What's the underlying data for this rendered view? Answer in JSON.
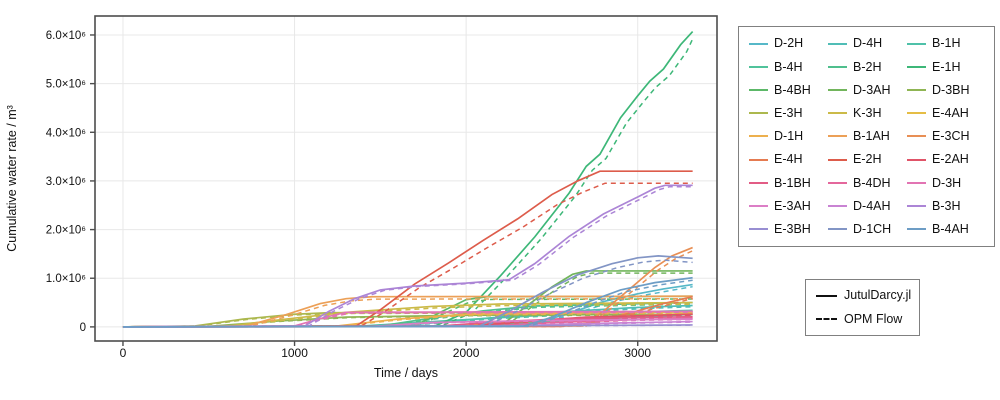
{
  "chart_data": {
    "type": "line",
    "title": "",
    "xlabel": "Time / days",
    "ylabel": "Cumulative water rate / m³",
    "xlim_days": [
      -163,
      3462
    ],
    "ylim_e6": [
      -0.29,
      6.39
    ],
    "grid": true,
    "x_ticks": [
      {
        "v": 0,
        "label": "0"
      },
      {
        "v": 1000,
        "label": "1000"
      },
      {
        "v": 2000,
        "label": "2000"
      },
      {
        "v": 3000,
        "label": "3000"
      }
    ],
    "y_ticks": [
      {
        "v": 0,
        "label": "0"
      },
      {
        "v": 1,
        "label": "1.0×10⁶"
      },
      {
        "v": 2,
        "label": "2.0×10⁶"
      },
      {
        "v": 3,
        "label": "3.0×10⁶"
      },
      {
        "v": 4,
        "label": "4.0×10⁶"
      },
      {
        "v": 5,
        "label": "5.0×10⁶"
      },
      {
        "v": 6,
        "label": "6.0×10⁶"
      }
    ],
    "legend_position": "outside-right",
    "line_styles": {
      "solid": "JutulDarcy.jl",
      "dashed": "OPM Flow"
    },
    "note": "27 well series; values stored in units of 10^6 m³; dashed OPM Flow curve = solid points with value×opm_scale and time+opm_lag",
    "series": [
      {
        "name": "D-2H",
        "color": "#56b8c8",
        "opm_scale": 0.95,
        "opm_lag": 30,
        "points": [
          [
            0,
            0
          ],
          [
            2350,
            0.02
          ],
          [
            2600,
            0.28
          ],
          [
            2800,
            0.52
          ],
          [
            3000,
            0.68
          ],
          [
            3150,
            0.78
          ],
          [
            3320,
            0.87
          ]
        ]
      },
      {
        "name": "D-4H",
        "color": "#50bdb6",
        "opm_scale": 0.94,
        "opm_lag": 30,
        "points": [
          [
            0,
            0
          ],
          [
            1600,
            0.02
          ],
          [
            2000,
            0.14
          ],
          [
            2500,
            0.3
          ],
          [
            3000,
            0.4
          ],
          [
            3320,
            0.44
          ]
        ]
      },
      {
        "name": "B-1H",
        "color": "#4fc1a9",
        "opm_scale": 0.94,
        "opm_lag": 30,
        "points": [
          [
            0,
            0
          ],
          [
            1400,
            0.02
          ],
          [
            1900,
            0.13
          ],
          [
            2600,
            0.27
          ],
          [
            3320,
            0.34
          ]
        ]
      },
      {
        "name": "B-4H",
        "color": "#50c39b",
        "opm_scale": 0.93,
        "opm_lag": 30,
        "points": [
          [
            0,
            0
          ],
          [
            2000,
            0.01
          ],
          [
            2400,
            0.1
          ],
          [
            3000,
            0.2
          ],
          [
            3320,
            0.26
          ]
        ]
      },
      {
        "name": "B-2H",
        "color": "#4fbf8d",
        "opm_scale": 0.94,
        "opm_lag": 30,
        "points": [
          [
            0,
            0
          ],
          [
            1500,
            0.02
          ],
          [
            1800,
            0.18
          ],
          [
            2100,
            0.33
          ],
          [
            2400,
            0.43
          ],
          [
            3320,
            0.5
          ]
        ]
      },
      {
        "name": "E-1H",
        "color": "#3db778",
        "opm_scale": 0.975,
        "opm_lag": 35,
        "points": [
          [
            0,
            0
          ],
          [
            1820,
            0.02
          ],
          [
            2000,
            0.3
          ],
          [
            2200,
            1.05
          ],
          [
            2400,
            1.85
          ],
          [
            2600,
            2.75
          ],
          [
            2700,
            3.3
          ],
          [
            2780,
            3.55
          ],
          [
            2900,
            4.3
          ],
          [
            3000,
            4.75
          ],
          [
            3070,
            5.05
          ],
          [
            3150,
            5.3
          ],
          [
            3250,
            5.8
          ],
          [
            3320,
            6.07
          ]
        ]
      },
      {
        "name": "B-4BH",
        "color": "#5cb868",
        "opm_scale": 0.91,
        "opm_lag": 20,
        "points": [
          [
            0,
            0
          ],
          [
            1700,
            0.02
          ],
          [
            1850,
            0.3
          ],
          [
            2000,
            0.56
          ],
          [
            2120,
            0.62
          ],
          [
            3320,
            0.63
          ]
        ]
      },
      {
        "name": "D-3AH",
        "color": "#72b55c",
        "opm_scale": 0.96,
        "opm_lag": 30,
        "points": [
          [
            0,
            0
          ],
          [
            2200,
            0.02
          ],
          [
            2350,
            0.42
          ],
          [
            2500,
            0.82
          ],
          [
            2620,
            1.08
          ],
          [
            2700,
            1.15
          ],
          [
            3320,
            1.15
          ]
        ]
      },
      {
        "name": "D-3BH",
        "color": "#8fb554",
        "opm_scale": 0.95,
        "opm_lag": 20,
        "points": [
          [
            0,
            0
          ],
          [
            500,
            0.01
          ],
          [
            900,
            0.12
          ],
          [
            1300,
            0.2
          ],
          [
            2000,
            0.24
          ],
          [
            3320,
            0.26
          ]
        ]
      },
      {
        "name": "E-3H",
        "color": "#acb84e",
        "opm_scale": 0.95,
        "opm_lag": 20,
        "points": [
          [
            0,
            0
          ],
          [
            420,
            0.02
          ],
          [
            700,
            0.16
          ],
          [
            1000,
            0.26
          ],
          [
            1200,
            0.29
          ],
          [
            3320,
            0.31
          ]
        ]
      },
      {
        "name": "K-3H",
        "color": "#cbba48",
        "opm_scale": 0.93,
        "opm_lag": 25,
        "points": [
          [
            0,
            0
          ],
          [
            600,
            0.01
          ],
          [
            900,
            0.14
          ],
          [
            1300,
            0.3
          ],
          [
            1800,
            0.42
          ],
          [
            2200,
            0.47
          ],
          [
            3320,
            0.5
          ]
        ]
      },
      {
        "name": "E-4AH",
        "color": "#e5bd45",
        "opm_scale": 0.93,
        "opm_lag": 25,
        "points": [
          [
            0,
            0
          ],
          [
            1900,
            0.01
          ],
          [
            2300,
            0.1
          ],
          [
            2800,
            0.2
          ],
          [
            3320,
            0.28
          ]
        ]
      },
      {
        "name": "D-1H",
        "color": "#edb04e",
        "opm_scale": 0.94,
        "opm_lag": 25,
        "points": [
          [
            0,
            0
          ],
          [
            1250,
            0.02
          ],
          [
            1600,
            0.16
          ],
          [
            2000,
            0.26
          ],
          [
            3320,
            0.31
          ]
        ]
      },
      {
        "name": "B-1AH",
        "color": "#eca057",
        "opm_scale": 0.92,
        "opm_lag": 25,
        "points": [
          [
            0,
            0
          ],
          [
            720,
            0.02
          ],
          [
            950,
            0.25
          ],
          [
            1150,
            0.48
          ],
          [
            1300,
            0.58
          ],
          [
            1450,
            0.62
          ],
          [
            3320,
            0.63
          ]
        ]
      },
      {
        "name": "E-3CH",
        "color": "#e88f55",
        "opm_scale": 0.96,
        "opm_lag": 20,
        "points": [
          [
            0,
            0
          ],
          [
            2680,
            0.02
          ],
          [
            2800,
            0.32
          ],
          [
            2900,
            0.62
          ],
          [
            3000,
            0.92
          ],
          [
            3100,
            1.22
          ],
          [
            3200,
            1.46
          ],
          [
            3320,
            1.63
          ]
        ]
      },
      {
        "name": "E-4H",
        "color": "#e57b51",
        "opm_scale": 0.94,
        "opm_lag": 25,
        "points": [
          [
            0,
            0
          ],
          [
            2550,
            0.01
          ],
          [
            2750,
            0.1
          ],
          [
            2950,
            0.28
          ],
          [
            3150,
            0.48
          ],
          [
            3320,
            0.62
          ]
        ]
      },
      {
        "name": "E-2H",
        "color": "#dd5c4b",
        "opm_scale": 0.923,
        "opm_lag": 30,
        "points": [
          [
            0,
            0
          ],
          [
            1360,
            0.02
          ],
          [
            1500,
            0.35
          ],
          [
            1700,
            0.88
          ],
          [
            1900,
            1.32
          ],
          [
            2100,
            1.78
          ],
          [
            2300,
            2.22
          ],
          [
            2500,
            2.72
          ],
          [
            2650,
            3.0
          ],
          [
            2780,
            3.2
          ],
          [
            3320,
            3.2
          ]
        ]
      },
      {
        "name": "E-2AH",
        "color": "#e05468",
        "opm_scale": 0.93,
        "opm_lag": 25,
        "points": [
          [
            0,
            0
          ],
          [
            2000,
            0.01
          ],
          [
            2300,
            0.1
          ],
          [
            2700,
            0.2
          ],
          [
            3320,
            0.26
          ]
        ]
      },
      {
        "name": "B-1BH",
        "color": "#e25c85",
        "opm_scale": 0.93,
        "opm_lag": 25,
        "points": [
          [
            0,
            0
          ],
          [
            1850,
            0.02
          ],
          [
            2200,
            0.11
          ],
          [
            2600,
            0.17
          ],
          [
            3320,
            0.21
          ]
        ]
      },
      {
        "name": "B-4DH",
        "color": "#e4679c",
        "opm_scale": 0.92,
        "opm_lag": 25,
        "points": [
          [
            0,
            0
          ],
          [
            2100,
            0.01
          ],
          [
            2500,
            0.09
          ],
          [
            3000,
            0.15
          ],
          [
            3320,
            0.18
          ]
        ]
      },
      {
        "name": "D-3H",
        "color": "#e274b3",
        "opm_scale": 0.94,
        "opm_lag": 20,
        "points": [
          [
            0,
            0
          ],
          [
            1000,
            0.02
          ],
          [
            1180,
            0.2
          ],
          [
            1300,
            0.3
          ],
          [
            3320,
            0.32
          ]
        ]
      },
      {
        "name": "E-3AH",
        "color": "#dc7ec6",
        "opm_scale": 0.93,
        "opm_lag": 25,
        "points": [
          [
            0,
            0
          ],
          [
            1450,
            0.01
          ],
          [
            1800,
            0.09
          ],
          [
            2400,
            0.13
          ],
          [
            3320,
            0.16
          ]
        ]
      },
      {
        "name": "D-4AH",
        "color": "#c983d3",
        "opm_scale": 0.9,
        "opm_lag": 25,
        "points": [
          [
            0,
            0
          ],
          [
            2200,
            0.01
          ],
          [
            2600,
            0.06
          ],
          [
            3320,
            0.11
          ]
        ]
      },
      {
        "name": "B-3H",
        "color": "#ac85d6",
        "opm_scale": 0.99,
        "opm_lag": 25,
        "points": [
          [
            0,
            0
          ],
          [
            1060,
            0.02
          ],
          [
            1200,
            0.32
          ],
          [
            1350,
            0.58
          ],
          [
            1500,
            0.76
          ],
          [
            1700,
            0.84
          ],
          [
            2000,
            0.9
          ],
          [
            2250,
            0.97
          ],
          [
            2400,
            1.3
          ],
          [
            2600,
            1.86
          ],
          [
            2800,
            2.32
          ],
          [
            3000,
            2.67
          ],
          [
            3100,
            2.85
          ],
          [
            3160,
            2.91
          ],
          [
            3320,
            2.91
          ]
        ]
      },
      {
        "name": "E-3BH",
        "color": "#988ed2",
        "opm_scale": 0.9,
        "opm_lag": 25,
        "points": [
          [
            0,
            0
          ],
          [
            1500,
            0.01
          ],
          [
            3320,
            0.04
          ]
        ]
      },
      {
        "name": "D-1CH",
        "color": "#8295c5",
        "opm_scale": 0.94,
        "opm_lag": 35,
        "points": [
          [
            0,
            0
          ],
          [
            2080,
            0.02
          ],
          [
            2250,
            0.32
          ],
          [
            2450,
            0.72
          ],
          [
            2650,
            1.07
          ],
          [
            2850,
            1.3
          ],
          [
            3000,
            1.42
          ],
          [
            3120,
            1.46
          ],
          [
            3320,
            1.41
          ]
        ]
      },
      {
        "name": "B-4AH",
        "color": "#6d9dc5",
        "opm_scale": 0.95,
        "opm_lag": 30,
        "points": [
          [
            0,
            0
          ],
          [
            2330,
            0.01
          ],
          [
            2500,
            0.2
          ],
          [
            2700,
            0.5
          ],
          [
            2900,
            0.76
          ],
          [
            3100,
            0.91
          ],
          [
            3320,
            1.01
          ]
        ]
      }
    ]
  },
  "colors": {
    "axis": "#4d4d4d",
    "grid": "#e8e8e8",
    "background": "#ffffff",
    "legend_border": "#808080",
    "text": "#111111"
  },
  "legend_style": {
    "items": [
      {
        "label": "JutulDarcy.jl",
        "style": "solid"
      },
      {
        "label": "OPM Flow",
        "style": "dashed"
      }
    ]
  }
}
